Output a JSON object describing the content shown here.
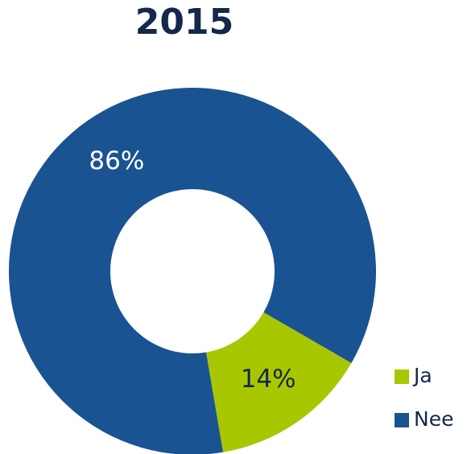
{
  "chart_data": {
    "type": "donut",
    "title": "2015",
    "categories": [
      "Ja",
      "Nee"
    ],
    "values": [
      14,
      86
    ],
    "value_labels": [
      "14%",
      "86%"
    ],
    "colors": [
      "#a9c700",
      "#1a5391"
    ],
    "label_colors": [
      "#13284a",
      "#ffffff"
    ],
    "legend": "bottom-right"
  }
}
